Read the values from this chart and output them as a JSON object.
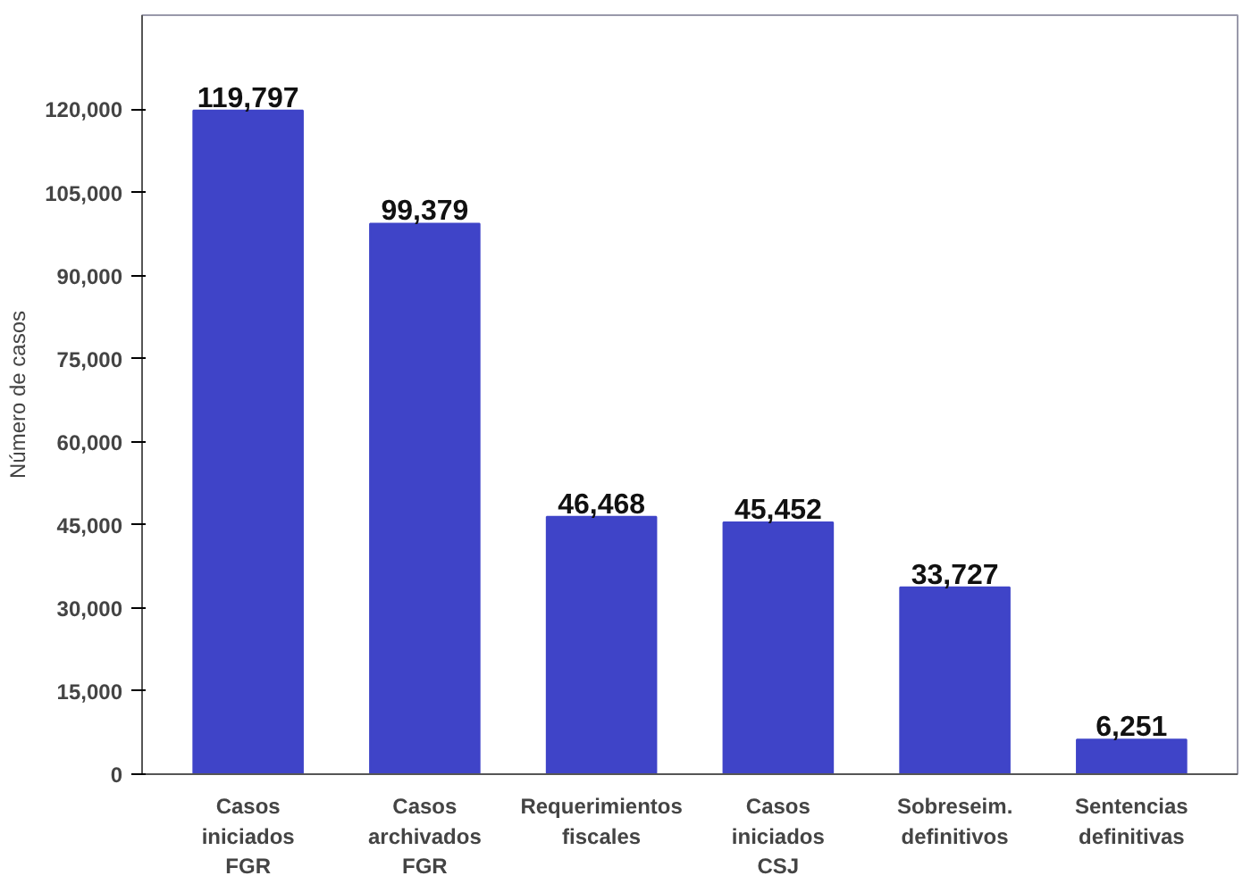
{
  "chart_data": {
    "type": "bar",
    "ylabel": "Número de casos",
    "categories": [
      "Casos iniciados FGR",
      "Casos archivados FGR",
      "Requerimientos fiscales",
      "Casos iniciados CSJ",
      "Sobreseim. definitivos",
      "Sentencias definitivas"
    ],
    "values": [
      119797,
      99379,
      46468,
      45452,
      33727,
      6251
    ],
    "color": "#3f44c8",
    "value_labels": [
      "119,797",
      "99,379",
      "46,468",
      "45,452",
      "33,727",
      "6,251"
    ],
    "grid": false,
    "ylim": [
      0,
      137000
    ],
    "yticks": [
      0,
      {
        "value": 15000,
        "label": "15,000"
      },
      {
        "value": 30000,
        "label": "30,000"
      },
      {
        "value": 45000,
        "label": "45,000"
      },
      {
        "value": 60000,
        "label": "60,000"
      },
      {
        "value": 75000,
        "label": "75,000"
      },
      {
        "value": 90000,
        "label": "90,000"
      },
      {
        "value": 105000,
        "label": "105,000"
      },
      {
        "value": 120000,
        "label": "120,000"
      }
    ]
  }
}
